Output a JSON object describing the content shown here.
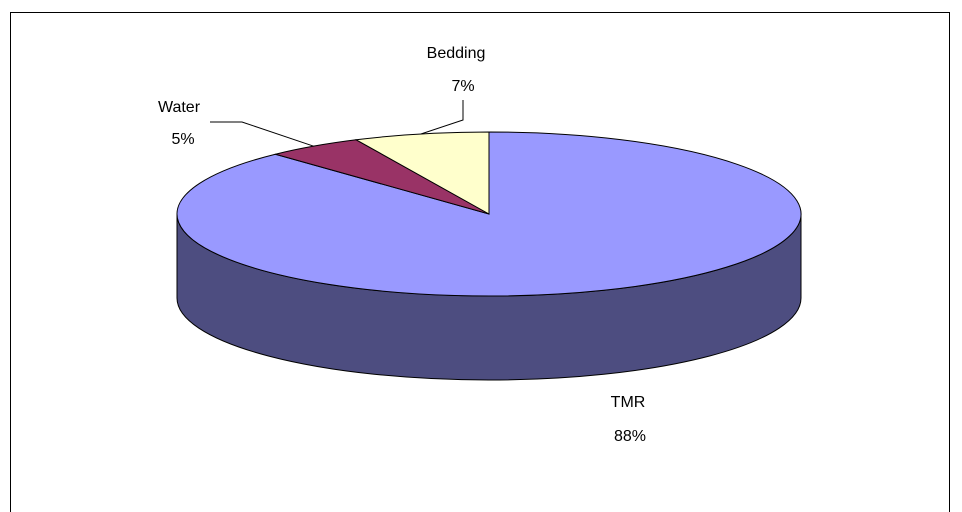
{
  "chart_data": {
    "type": "pie",
    "style": "3d",
    "title": "",
    "legend": "none",
    "slices": [
      {
        "name": "TMR",
        "value": 88,
        "label": "88%",
        "color": "#9999FF",
        "side_color": "#4D4D80"
      },
      {
        "name": "Water",
        "value": 5,
        "label": "5%",
        "color": "#993366",
        "side_color": "#4D1A33"
      },
      {
        "name": "Bedding",
        "value": 7,
        "label": "7%",
        "color": "#FFFFCC",
        "side_color": "#80806A"
      }
    ]
  }
}
